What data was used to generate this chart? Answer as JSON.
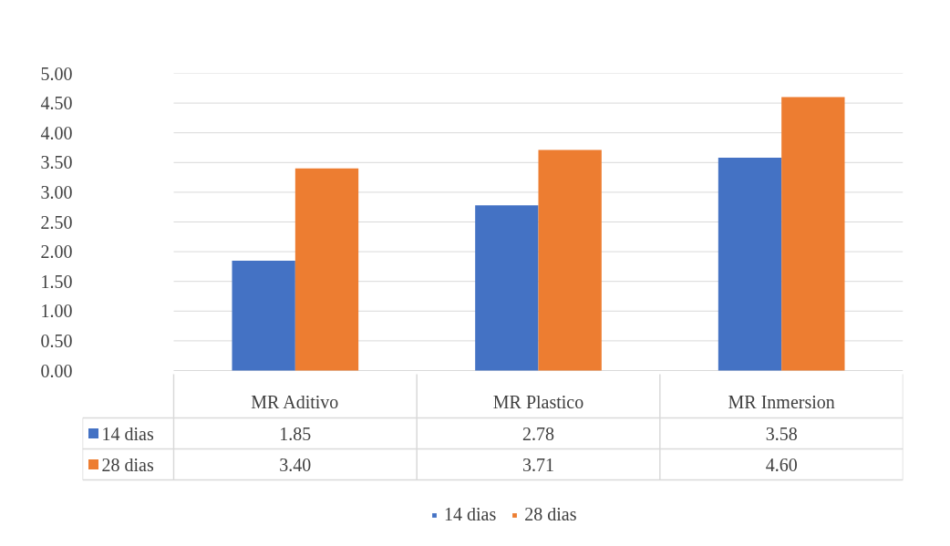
{
  "chart_data": {
    "type": "bar",
    "categories": [
      "MR Aditivo",
      "MR Plastico",
      "MR Inmersion"
    ],
    "series": [
      {
        "name": "14 dias",
        "color": "#4472c4",
        "values": [
          1.85,
          2.78,
          3.58
        ],
        "value_labels": [
          "1.85",
          "2.78",
          "3.58"
        ]
      },
      {
        "name": "28 dias",
        "color": "#ed7d31",
        "values": [
          3.4,
          3.71,
          4.6
        ],
        "value_labels": [
          "3.40",
          "3.71",
          "4.60"
        ]
      }
    ],
    "ylim": [
      0,
      5
    ],
    "yticks": [
      {
        "value": 0,
        "label": "0.00"
      },
      {
        "value": 0.5,
        "label": "0.50"
      },
      {
        "value": 1,
        "label": "1.00"
      },
      {
        "value": 1.5,
        "label": "1.50"
      },
      {
        "value": 2,
        "label": "2.00"
      },
      {
        "value": 2.5,
        "label": "2.50"
      },
      {
        "value": 3,
        "label": "3.00"
      },
      {
        "value": 3.5,
        "label": "3.50"
      },
      {
        "value": 4,
        "label": "4.00"
      },
      {
        "value": 4.5,
        "label": "4.50"
      },
      {
        "value": 5,
        "label": "5.00"
      }
    ],
    "grid": "y",
    "legend": "bottom"
  }
}
